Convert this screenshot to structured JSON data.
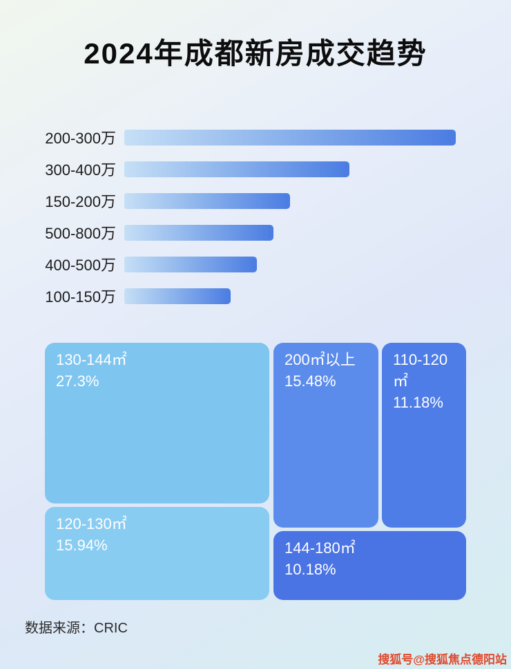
{
  "title": "2024年成都新房成交趋势",
  "footer": {
    "source": "数据来源：CRIC"
  },
  "watermark": "搜狐号@搜狐焦点德阳站",
  "colors": {
    "bar_gradient_start": "#c6dff6",
    "bar_gradient_end": "#4a7ce2",
    "watermark_color": "#df4a2d",
    "title_color": "#0d0d0d"
  },
  "chart_data": [
    {
      "type": "bar",
      "title": "2024年成都新房成交趋势",
      "orientation": "horizontal",
      "categories": [
        "200-300万",
        "300-400万",
        "150-200万",
        "500-800万",
        "400-500万",
        "100-150万"
      ],
      "values": [
        100,
        68,
        50,
        45,
        40,
        32
      ],
      "xlabel": "",
      "ylabel": "",
      "bars": [
        {
          "label": "200-300万",
          "width_pct": 100
        },
        {
          "label": "300-400万",
          "width_pct": 68
        },
        {
          "label": "150-200万",
          "width_pct": 50
        },
        {
          "label": "500-800万",
          "width_pct": 45
        },
        {
          "label": "400-500万",
          "width_pct": 40
        },
        {
          "label": "100-150万",
          "width_pct": 32
        }
      ]
    },
    {
      "type": "treemap",
      "items": [
        {
          "label": "130-144㎡",
          "display": "27.3%",
          "value_pct": 27.3,
          "color": "#7ec5f0"
        },
        {
          "label": "120-130㎡",
          "display": "15.94%",
          "value_pct": 15.94,
          "color": "#89ccf2"
        },
        {
          "label": "200㎡以上",
          "display": "15.48%",
          "value_pct": 15.48,
          "color": "#5c8ceb"
        },
        {
          "label": "110-120㎡",
          "display": "11.18%",
          "value_pct": 11.18,
          "color": "#4e7de8"
        },
        {
          "label": "144-180㎡",
          "display": "10.18%",
          "value_pct": 10.18,
          "color": "#4a73e4"
        }
      ]
    }
  ]
}
